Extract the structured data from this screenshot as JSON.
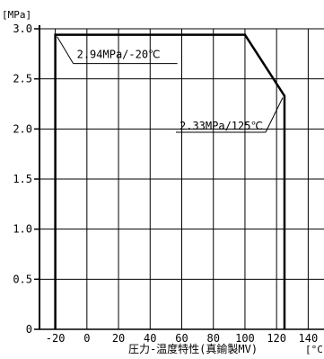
{
  "chart_data": {
    "type": "line",
    "title": "",
    "xlabel": "[°C]",
    "ylabel": "[MPa]",
    "caption": "圧力-温度特性(真鍮製MV)",
    "xlim": [
      -30,
      150
    ],
    "ylim": [
      0,
      3.0
    ],
    "x_ticks": [
      -20,
      0,
      20,
      40,
      60,
      80,
      100,
      120,
      140
    ],
    "y_ticks": [
      0,
      0.5,
      1.0,
      1.5,
      2.0,
      2.5,
      3.0
    ],
    "y_tick_labels": [
      "0",
      "0.5",
      "1.0",
      "1.5",
      "2.0",
      "2.5",
      "3.0"
    ],
    "grid": true,
    "series": [
      {
        "x": [
          -20,
          -20,
          100,
          125,
          125
        ],
        "y": [
          0,
          2.94,
          2.94,
          2.33,
          0
        ],
        "color": "#000000"
      }
    ],
    "annotations": [
      {
        "text": "2.94MPa/-20℃",
        "x": -20,
        "y": 2.94
      },
      {
        "text": "2.33MPa/125℃",
        "x": 125,
        "y": 2.33
      }
    ]
  }
}
